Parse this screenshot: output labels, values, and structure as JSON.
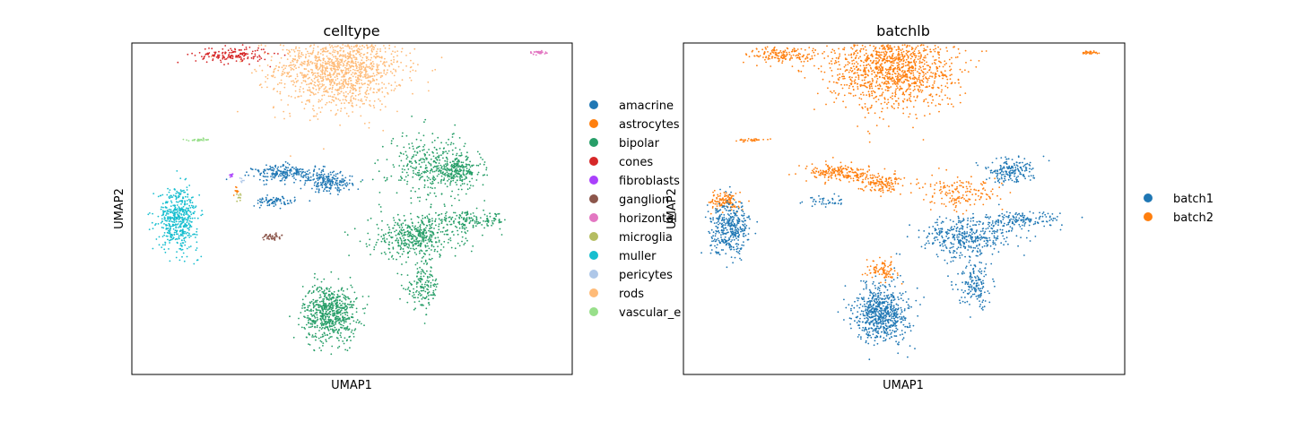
{
  "colors": {
    "amacrine": "#1f77b4",
    "astrocytes": "#ff7f0e",
    "bipolar": "#279e68",
    "cones": "#d62728",
    "fibroblasts": "#aa40fc",
    "ganglion": "#8c564b",
    "horizontal": "#e377c2",
    "microglia": "#b5bd61",
    "muller": "#17becf",
    "pericytes": "#aec7e8",
    "rods": "#ffbb78",
    "vascular_e": "#98df8a",
    "batch1": "#1f77b4",
    "batch2": "#ff7f0e"
  },
  "chart_data": [
    {
      "type": "scatter",
      "title": "celltype",
      "xlabel": "UMAP1",
      "ylabel": "UMAP2",
      "grid": false,
      "legend_position": "right-outside",
      "legend": [
        "amacrine",
        "astrocytes",
        "bipolar",
        "cones",
        "fibroblasts",
        "ganglion",
        "horizontal",
        "microglia",
        "muller",
        "pericytes",
        "rods",
        "vascular_e"
      ],
      "series": [
        {
          "name": "rods",
          "clusters": [
            {
              "x": -0.5,
              "y": 6.0,
              "rx": 2.6,
              "ry": 1.8,
              "n": 1400
            }
          ]
        },
        {
          "name": "cones",
          "clusters": [
            {
              "x": -4.9,
              "y": 6.5,
              "rx": 1.5,
              "ry": 0.35,
              "n": 160
            }
          ]
        },
        {
          "name": "bipolar",
          "clusters": [
            {
              "x": -0.9,
              "y": -4.4,
              "rx": 1.1,
              "ry": 1.2,
              "n": 650
            },
            {
              "x": 2.6,
              "y": -1.2,
              "rx": 1.8,
              "ry": 0.9,
              "n": 450
            },
            {
              "x": 4.3,
              "y": 1.6,
              "rx": 1.0,
              "ry": 0.5,
              "n": 200
            },
            {
              "x": 4.8,
              "y": -0.5,
              "rx": 1.6,
              "ry": 0.35,
              "n": 160
            },
            {
              "x": 2.9,
              "y": -3.3,
              "rx": 0.7,
              "ry": 0.9,
              "n": 150
            },
            {
              "x": 3.2,
              "y": 1.8,
              "rx": 1.7,
              "ry": 1.4,
              "n": 350
            }
          ]
        },
        {
          "name": "amacrine",
          "clusters": [
            {
              "x": -2.6,
              "y": 1.5,
              "rx": 1.4,
              "ry": 0.35,
              "n": 230
            },
            {
              "x": -0.9,
              "y": 1.1,
              "rx": 0.9,
              "ry": 0.4,
              "n": 180
            },
            {
              "x": -3.2,
              "y": 0.3,
              "rx": 0.9,
              "ry": 0.2,
              "n": 80
            }
          ]
        },
        {
          "name": "muller",
          "clusters": [
            {
              "x": -7.1,
              "y": -0.4,
              "rx": 0.8,
              "ry": 1.3,
              "n": 500
            }
          ]
        },
        {
          "name": "ganglion",
          "clusters": [
            {
              "x": -3.3,
              "y": -1.2,
              "rx": 0.4,
              "ry": 0.15,
              "n": 40
            }
          ]
        },
        {
          "name": "horizontal",
          "clusters": [
            {
              "x": 7.6,
              "y": 6.6,
              "rx": 0.35,
              "ry": 0.08,
              "n": 35
            }
          ]
        },
        {
          "name": "vascular_e",
          "clusters": [
            {
              "x": -6.3,
              "y": 2.9,
              "rx": 0.6,
              "ry": 0.05,
              "n": 30
            }
          ]
        },
        {
          "name": "fibroblasts",
          "clusters": [
            {
              "x": -4.9,
              "y": 1.4,
              "rx": 0.1,
              "ry": 0.1,
              "n": 10
            }
          ]
        },
        {
          "name": "microglia",
          "clusters": [
            {
              "x": -4.6,
              "y": 0.5,
              "rx": 0.1,
              "ry": 0.2,
              "n": 10
            }
          ]
        },
        {
          "name": "astrocytes",
          "clusters": [
            {
              "x": -4.7,
              "y": 0.8,
              "rx": 0.15,
              "ry": 0.2,
              "n": 12
            }
          ]
        },
        {
          "name": "pericytes",
          "clusters": [
            {
              "x": -4.5,
              "y": 1.2,
              "rx": 0.1,
              "ry": 0.1,
              "n": 6
            }
          ]
        }
      ],
      "xlim": [
        -9,
        9
      ],
      "ylim": [
        -7,
        7
      ]
    },
    {
      "type": "scatter",
      "title": "batchlb",
      "xlabel": "UMAP1",
      "ylabel": "UMAP2",
      "grid": false,
      "legend_position": "right-outside",
      "legend": [
        "batch1",
        "batch2"
      ],
      "series": [
        {
          "name": "batch2",
          "clusters": [
            {
              "x": -0.5,
              "y": 6.0,
              "rx": 2.6,
              "ry": 1.8,
              "n": 1300
            },
            {
              "x": -4.9,
              "y": 6.5,
              "rx": 1.5,
              "ry": 0.35,
              "n": 160
            },
            {
              "x": -2.6,
              "y": 1.5,
              "rx": 1.4,
              "ry": 0.35,
              "n": 200
            },
            {
              "x": -0.9,
              "y": 1.1,
              "rx": 0.9,
              "ry": 0.4,
              "n": 140
            },
            {
              "x": -0.9,
              "y": -2.6,
              "rx": 0.6,
              "ry": 0.4,
              "n": 90
            },
            {
              "x": 2.4,
              "y": 0.6,
              "rx": 1.6,
              "ry": 0.7,
              "n": 160
            },
            {
              "x": 7.6,
              "y": 6.6,
              "rx": 0.35,
              "ry": 0.08,
              "n": 30
            },
            {
              "x": -6.3,
              "y": 2.9,
              "rx": 0.6,
              "ry": 0.05,
              "n": 30
            },
            {
              "x": -7.3,
              "y": 0.3,
              "rx": 0.6,
              "ry": 0.4,
              "n": 120
            }
          ]
        },
        {
          "name": "batch1",
          "clusters": [
            {
              "x": -0.9,
              "y": -4.4,
              "rx": 1.1,
              "ry": 1.2,
              "n": 650
            },
            {
              "x": 2.6,
              "y": -1.2,
              "rx": 1.8,
              "ry": 0.9,
              "n": 400
            },
            {
              "x": 4.3,
              "y": 1.6,
              "rx": 1.0,
              "ry": 0.5,
              "n": 180
            },
            {
              "x": 4.8,
              "y": -0.5,
              "rx": 1.6,
              "ry": 0.35,
              "n": 150
            },
            {
              "x": 2.9,
              "y": -3.3,
              "rx": 0.7,
              "ry": 0.9,
              "n": 150
            },
            {
              "x": -7.1,
              "y": -0.8,
              "rx": 0.8,
              "ry": 1.1,
              "n": 380
            },
            {
              "x": -3.2,
              "y": 0.3,
              "rx": 0.9,
              "ry": 0.2,
              "n": 40
            }
          ]
        }
      ],
      "xlim": [
        -9,
        9
      ],
      "ylim": [
        -7,
        7
      ]
    }
  ]
}
